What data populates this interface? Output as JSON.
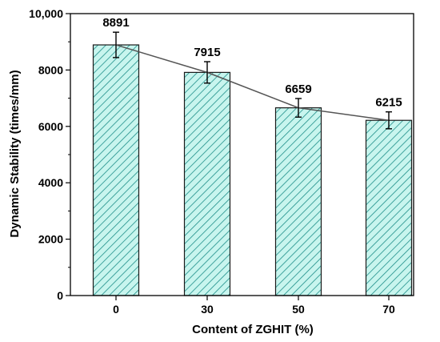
{
  "chart_data": {
    "type": "bar",
    "xlabel": "Content of ZGHIT (%)",
    "ylabel": "Dynamic Stability (times/mm)",
    "categories": [
      "0",
      "30",
      "50",
      "70"
    ],
    "values": [
      8891,
      7915,
      6659,
      6215
    ],
    "data_labels": [
      "8891",
      "7915",
      "6659",
      "6215"
    ],
    "error": [
      450,
      380,
      330,
      300
    ],
    "ylim": [
      0,
      10000
    ],
    "yticks": [
      0,
      2000,
      4000,
      6000,
      8000,
      10000
    ],
    "ytick_labels": [
      "0",
      "2000",
      "4000",
      "6000",
      "8000",
      "10,000"
    ],
    "trend_line": true,
    "grid": false,
    "bar_fill": "#c8f5ee",
    "bar_hatch_color": "#1f8f8a",
    "bar_edge": "#1a1a1a",
    "line_color": "#555555"
  }
}
